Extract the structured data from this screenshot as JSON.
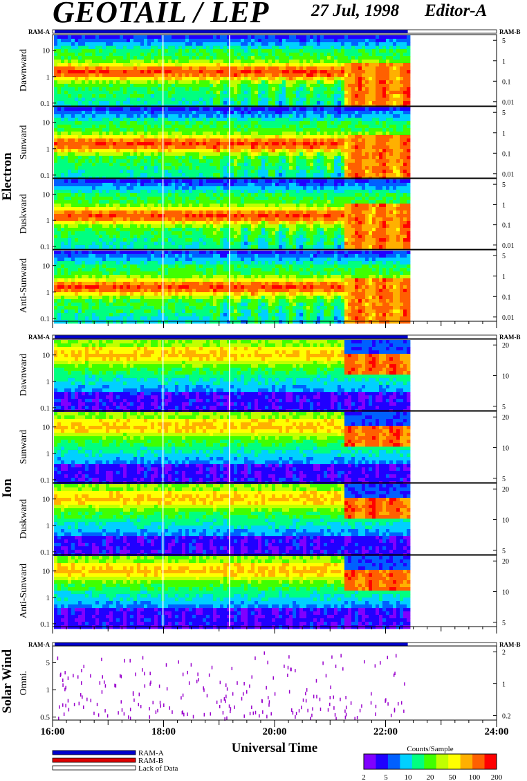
{
  "header": {
    "title": "GEOTAIL / LEP",
    "date": "27 Jul, 1998",
    "editor": "Editor-A"
  },
  "colors": {
    "ram_a": "#0000cc",
    "ram_b": "#dd0000",
    "spectro_scale": [
      "#8000ff",
      "#2000ff",
      "#0060ff",
      "#00d0ff",
      "#00ff80",
      "#40ff00",
      "#c0ff00",
      "#ffff00",
      "#ffb000",
      "#ff6000",
      "#ff0000"
    ]
  },
  "chart_data": {
    "type": "heatmap",
    "xlabel": "Universal Time",
    "x_ticks": [
      "16:00",
      "18:00",
      "20:00",
      "22:00",
      "24:00"
    ],
    "x_range_hours": [
      16,
      24
    ],
    "data_end_hour": 22.4,
    "mode_bar_labels": {
      "left": "RAM-A",
      "right": "RAM-B"
    },
    "groups": [
      {
        "name": "Electron",
        "panels": [
          {
            "label": "Dawnward",
            "left_ticks": [
              "10",
              "1",
              "0.1"
            ],
            "right_ticks": [
              "5",
              "1",
              "0.1",
              "0.01"
            ]
          },
          {
            "label": "Sunward",
            "left_ticks": [
              "10",
              "1",
              "0.1"
            ],
            "right_ticks": [
              "5",
              "1",
              "0.1",
              "0.01"
            ]
          },
          {
            "label": "Duskward",
            "left_ticks": [
              "10",
              "1",
              "0.1"
            ],
            "right_ticks": [
              "5",
              "1",
              "0.1",
              "0.01"
            ]
          },
          {
            "label": "Anti-Sunward",
            "left_ticks": [
              "10",
              "1",
              "0.1"
            ],
            "right_ticks": [
              "5",
              "1",
              "0.1",
              "0.01"
            ]
          }
        ]
      },
      {
        "name": "Ion",
        "panels": [
          {
            "label": "Dawnward",
            "left_ticks": [
              "10",
              "1",
              "0.1"
            ],
            "right_ticks": [
              "20",
              "10",
              "5"
            ]
          },
          {
            "label": "Sunward",
            "left_ticks": [
              "10",
              "1",
              "0.1"
            ],
            "right_ticks": [
              "20",
              "10",
              "5"
            ]
          },
          {
            "label": "Duskward",
            "left_ticks": [
              "10",
              "1",
              "0.1"
            ],
            "right_ticks": [
              "20",
              "10",
              "5"
            ]
          },
          {
            "label": "Anti-Sunward",
            "left_ticks": [
              "10",
              "1",
              "0.1"
            ],
            "right_ticks": [
              "20",
              "10",
              "5"
            ]
          }
        ]
      },
      {
        "name": "Solar Wind",
        "panels": [
          {
            "label": "Omni.",
            "left_ticks": [
              "5",
              "1",
              "0.5"
            ],
            "right_ticks": [
              "2",
              "1",
              "0.2"
            ]
          }
        ]
      }
    ],
    "legend": {
      "items": [
        "RAM-A",
        "RAM-B",
        "Lack of Data"
      ]
    },
    "colorbar": {
      "title": "Counts/Sample",
      "ticks": [
        "2",
        "5",
        "10",
        "20",
        "50",
        "100",
        "200"
      ]
    }
  }
}
